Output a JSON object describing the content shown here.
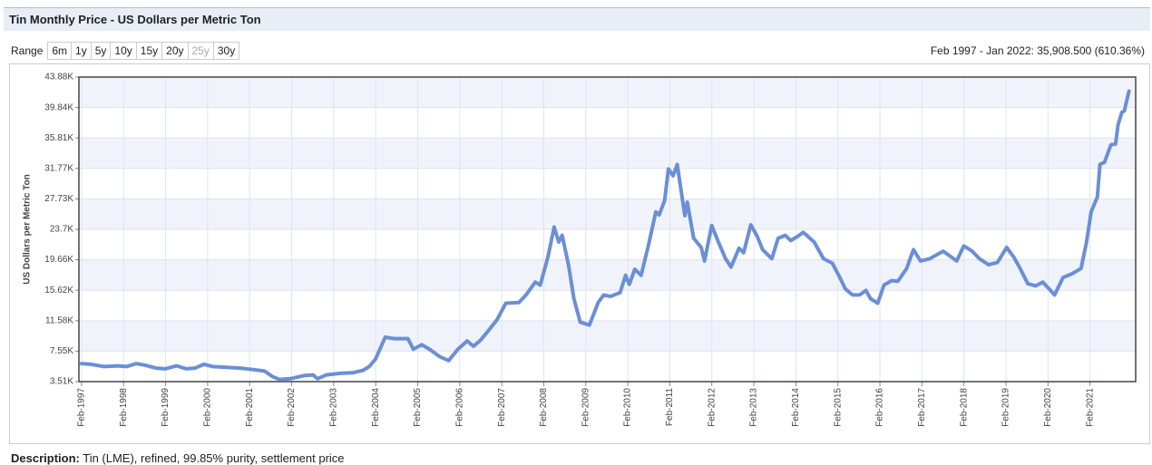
{
  "page": {
    "title": "Tin Monthly Price - US Dollars per Metric Ton",
    "range_label": "Range",
    "range_buttons": [
      "6m",
      "1y",
      "5y",
      "10y",
      "15y",
      "20y",
      "25y",
      "30y"
    ],
    "summary": "Feb 1997 - Jan 2022: 35,908.500 (610.36%)",
    "description_label": "Description:",
    "description": "Tin (LME), refined, 99.85% purity, settlement price"
  },
  "chart_data": {
    "type": "line",
    "y_label": "US Dollars per Metric Ton",
    "color": "#6b8fd6",
    "grid": true,
    "x": [
      1997.08,
      1997.3,
      1997.62,
      1997.95,
      1998.16,
      1998.38,
      1998.59,
      1998.85,
      1999.07,
      1999.35,
      1999.57,
      1999.78,
      2000.0,
      2000.21,
      2000.54,
      2000.86,
      2001.18,
      2001.44,
      2001.62,
      2001.79,
      2002.05,
      2002.37,
      2002.59,
      2002.7,
      2002.91,
      2003.24,
      2003.56,
      2003.78,
      2003.93,
      2004.08,
      2004.31,
      2004.53,
      2004.85,
      2004.98,
      2005.18,
      2005.39,
      2005.61,
      2005.82,
      2006.04,
      2006.26,
      2006.41,
      2006.58,
      2006.8,
      2006.97,
      2007.18,
      2007.49,
      2007.66,
      2007.88,
      2008.0,
      2008.18,
      2008.33,
      2008.44,
      2008.52,
      2008.67,
      2008.8,
      2008.95,
      2009.17,
      2009.38,
      2009.51,
      2009.67,
      2009.9,
      2010.03,
      2010.12,
      2010.25,
      2010.4,
      2010.57,
      2010.75,
      2010.83,
      2010.96,
      2011.05,
      2011.16,
      2011.26,
      2011.44,
      2011.5,
      2011.65,
      2011.83,
      2011.91,
      2012.08,
      2012.24,
      2012.41,
      2012.54,
      2012.73,
      2012.84,
      2013.01,
      2013.16,
      2013.29,
      2013.51,
      2013.66,
      2013.83,
      2013.96,
      2014.14,
      2014.26,
      2014.52,
      2014.74,
      2014.95,
      2015.13,
      2015.26,
      2015.43,
      2015.6,
      2015.75,
      2015.86,
      2016.03,
      2016.18,
      2016.36,
      2016.51,
      2016.72,
      2016.88,
      2017.05,
      2017.27,
      2017.59,
      2017.91,
      2018.08,
      2018.28,
      2018.45,
      2018.67,
      2018.88,
      2019.1,
      2019.27,
      2019.42,
      2019.6,
      2019.79,
      2019.96,
      2020.11,
      2020.24,
      2020.44,
      2020.65,
      2020.87,
      2021.0,
      2021.11,
      2021.26,
      2021.32,
      2021.43,
      2021.58,
      2021.69,
      2021.75,
      2021.84,
      2021.9,
      2022.01
    ],
    "values": [
      5900,
      5800,
      5500,
      5600,
      5500,
      5900,
      5700,
      5300,
      5200,
      5600,
      5200,
      5300,
      5800,
      5500,
      5400,
      5300,
      5100,
      4900,
      4200,
      3800,
      3900,
      4300,
      4400,
      3900,
      4400,
      4600,
      4700,
      5000,
      5500,
      6500,
      9400,
      9200,
      9200,
      7800,
      8400,
      7700,
      6800,
      6300,
      7800,
      8900,
      8200,
      9000,
      10500,
      11700,
      13900,
      14000,
      15000,
      16700,
      16300,
      20000,
      24000,
      22000,
      22900,
      19000,
      14500,
      11400,
      11000,
      14000,
      15000,
      14800,
      15300,
      17600,
      16400,
      18400,
      17600,
      21500,
      26000,
      25600,
      27500,
      31700,
      30800,
      32300,
      25500,
      27300,
      22500,
      21300,
      19500,
      24200,
      22000,
      19800,
      18700,
      21200,
      20600,
      24300,
      22800,
      21000,
      19800,
      22500,
      22900,
      22200,
      22800,
      23300,
      22000,
      19800,
      19200,
      17300,
      15800,
      15000,
      15000,
      15600,
      14500,
      13900,
      16300,
      16900,
      16800,
      18500,
      21000,
      19500,
      19800,
      20800,
      19500,
      21500,
      20800,
      19800,
      19000,
      19300,
      21300,
      20000,
      18500,
      16500,
      16200,
      16700,
      15800,
      15000,
      17300,
      17800,
      18500,
      22000,
      26000,
      28000,
      32300,
      32600,
      34900,
      35000,
      37500,
      39200,
      39400,
      42000
    ],
    "xlim": [
      1997.02,
      2022.17
    ],
    "xticks": [
      {
        "value": 1997.083,
        "label": "Feb-1997"
      },
      {
        "value": 1998.083,
        "label": "Feb-1998"
      },
      {
        "value": 1999.083,
        "label": "Feb-1999"
      },
      {
        "value": 2000.083,
        "label": "Feb-2000"
      },
      {
        "value": 2001.083,
        "label": "Feb-2001"
      },
      {
        "value": 2002.083,
        "label": "Feb-2002"
      },
      {
        "value": 2003.083,
        "label": "Feb-2003"
      },
      {
        "value": 2004.083,
        "label": "Feb-2004"
      },
      {
        "value": 2005.083,
        "label": "Feb-2005"
      },
      {
        "value": 2006.083,
        "label": "Feb-2006"
      },
      {
        "value": 2007.083,
        "label": "Feb-2007"
      },
      {
        "value": 2008.083,
        "label": "Feb-2008"
      },
      {
        "value": 2009.083,
        "label": "Feb-2009"
      },
      {
        "value": 2010.083,
        "label": "Feb-2010"
      },
      {
        "value": 2011.083,
        "label": "Feb-2011"
      },
      {
        "value": 2012.083,
        "label": "Feb-2012"
      },
      {
        "value": 2013.083,
        "label": "Feb-2013"
      },
      {
        "value": 2014.083,
        "label": "Feb-2014"
      },
      {
        "value": 2015.083,
        "label": "Feb-2015"
      },
      {
        "value": 2016.083,
        "label": "Feb-2016"
      },
      {
        "value": 2017.083,
        "label": "Feb-2017"
      },
      {
        "value": 2018.083,
        "label": "Feb-2018"
      },
      {
        "value": 2019.083,
        "label": "Feb-2019"
      },
      {
        "value": 2020.083,
        "label": "Feb-2020"
      },
      {
        "value": 2021.083,
        "label": "Feb-2021"
      }
    ],
    "ylim": [
      3510,
      43880
    ],
    "yticks": [
      {
        "value": 3510,
        "label": "3.51K"
      },
      {
        "value": 7550,
        "label": "7.55K"
      },
      {
        "value": 11580,
        "label": "11.58K"
      },
      {
        "value": 15620,
        "label": "15.62K"
      },
      {
        "value": 19660,
        "label": "19.66K"
      },
      {
        "value": 23700,
        "label": "23.7K"
      },
      {
        "value": 27730,
        "label": "27.73K"
      },
      {
        "value": 31770,
        "label": "31.77K"
      },
      {
        "value": 35810,
        "label": "35.81K"
      },
      {
        "value": 39840,
        "label": "39.84K"
      },
      {
        "value": 43880,
        "label": "43.88K"
      }
    ]
  }
}
